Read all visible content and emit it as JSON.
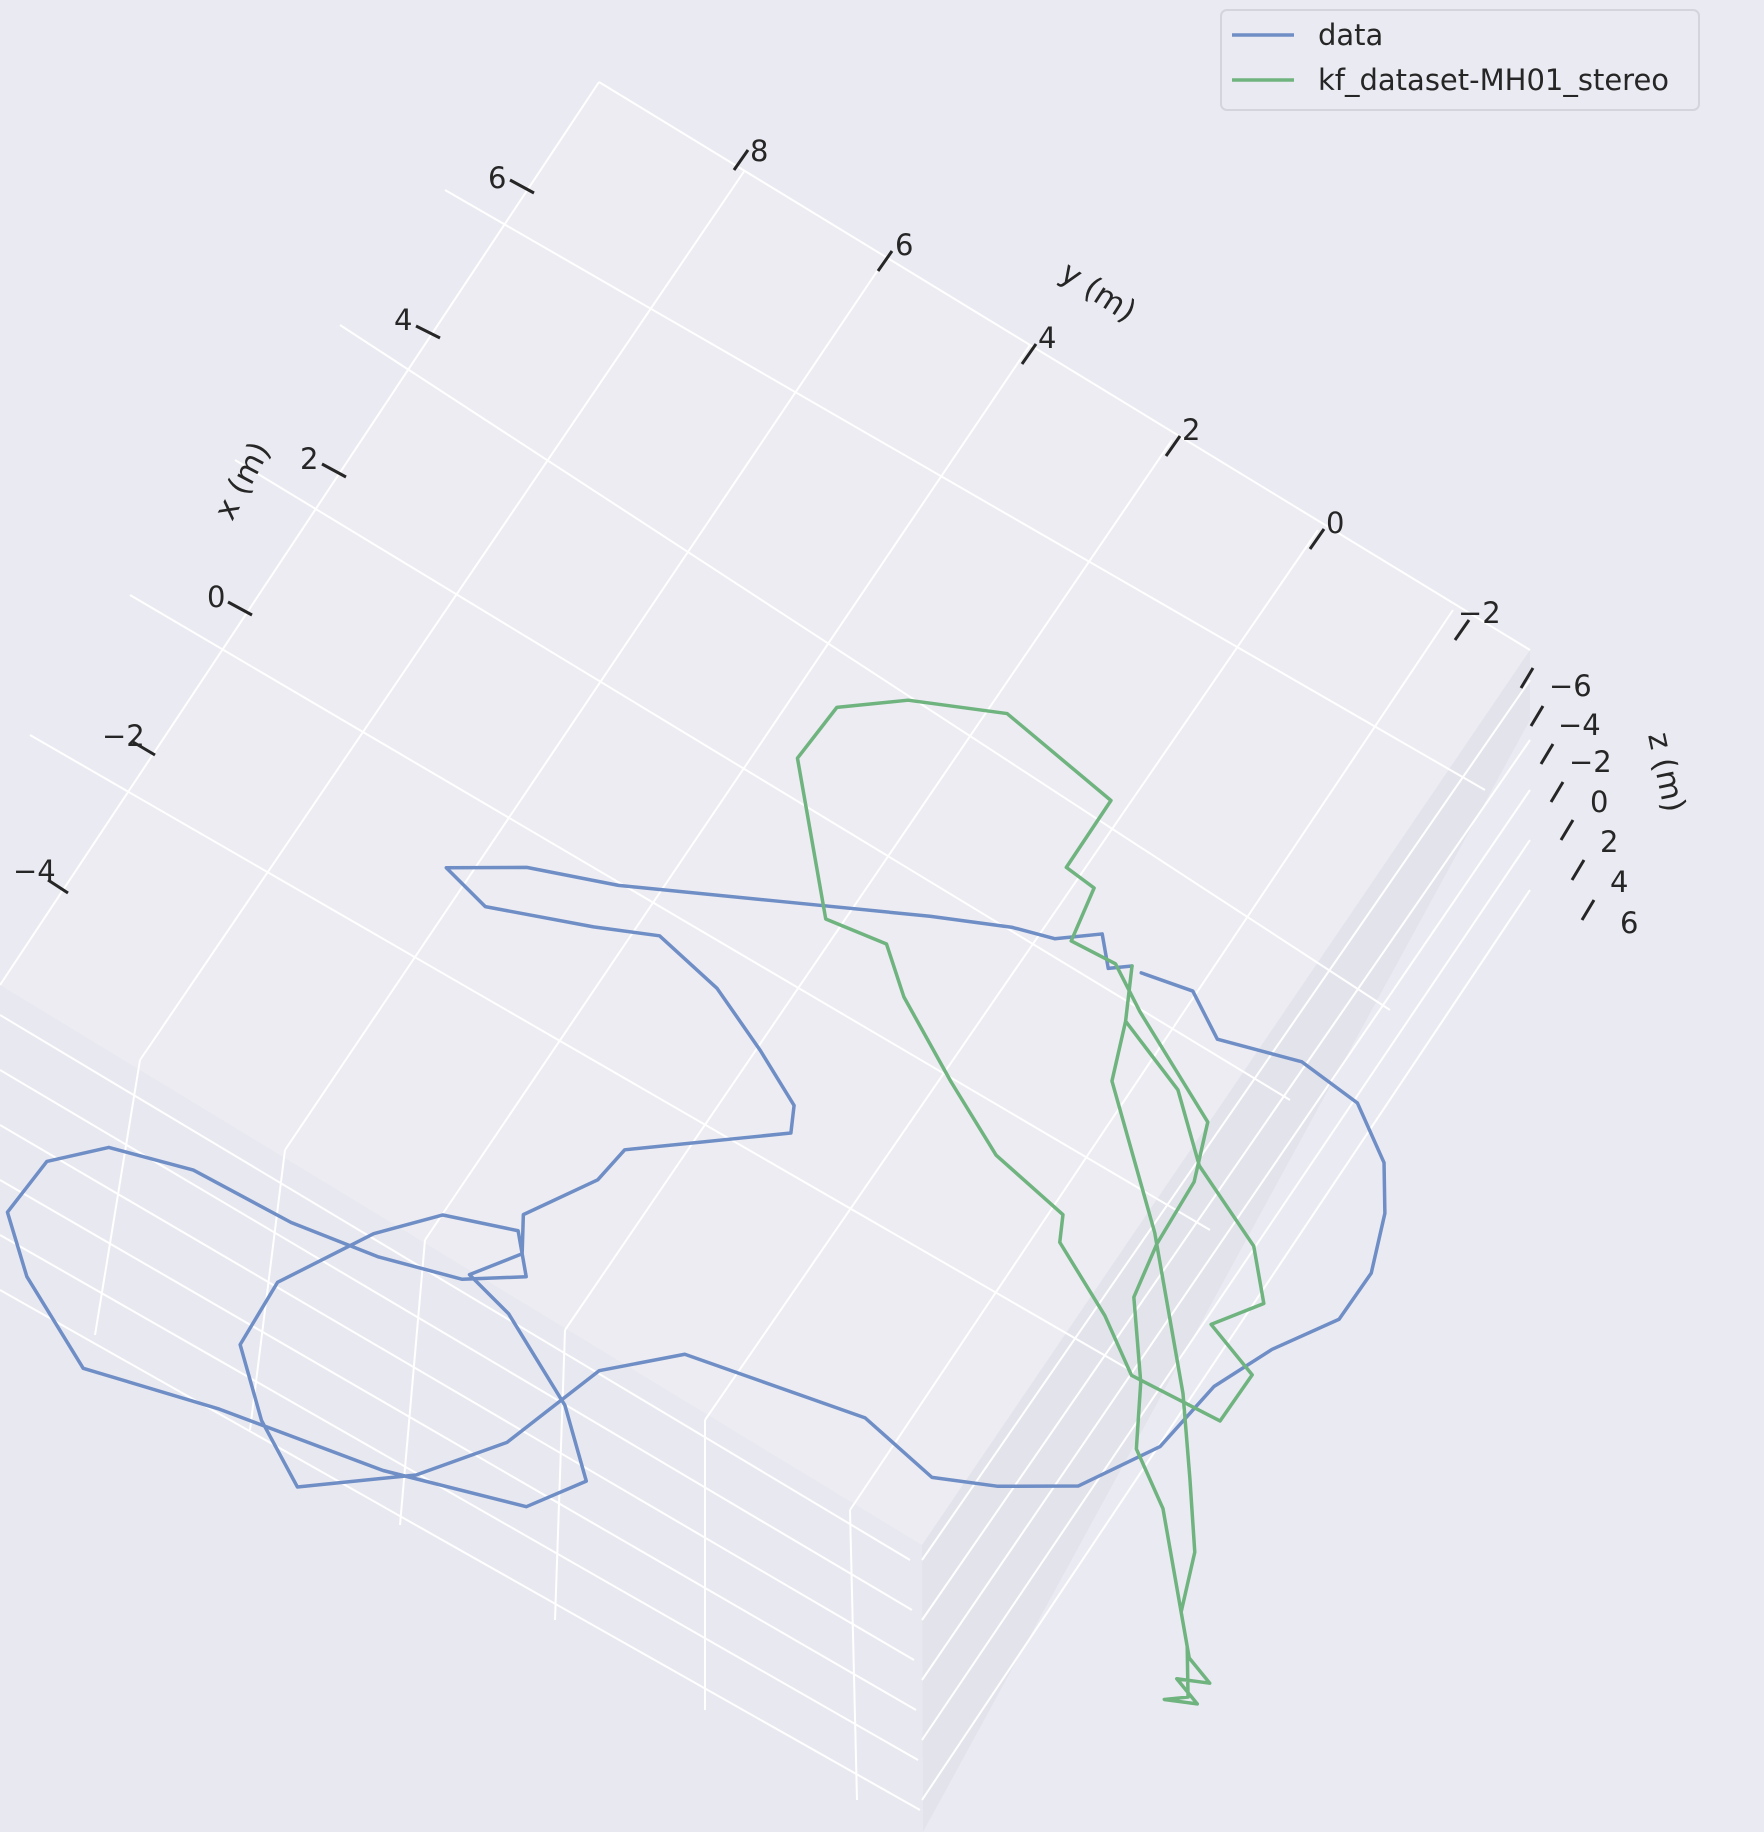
{
  "chart_data": {
    "type": "line3d",
    "xlabel": "x (m)",
    "ylabel": "y (m)",
    "zlabel": "z (m)",
    "x_ticks": [
      "−4",
      "−2",
      "0",
      "2",
      "4",
      "6"
    ],
    "y_ticks": [
      "8",
      "6",
      "4",
      "2",
      "0",
      "−2"
    ],
    "z_ticks": [
      "−6",
      "−4",
      "−2",
      "0",
      "2",
      "4",
      "6"
    ],
    "legend_position": "upper right",
    "series": [
      {
        "name": "data",
        "color": "#6f8ec6",
        "points": [
          [
            0.0,
            0.0,
            0.0
          ],
          [
            0.1,
            0.2,
            0.0
          ],
          [
            0.4,
            -0.1,
            0.0
          ],
          [
            0.6,
            0.3,
            0.0
          ],
          [
            0.9,
            0.5,
            0.0
          ],
          [
            1.4,
            1.0,
            0.0
          ],
          [
            2.3,
            2.0,
            0.0
          ],
          [
            3.2,
            3.0,
            0.0
          ],
          [
            3.8,
            3.5,
            0.0
          ],
          [
            4.2,
            4.1,
            0.0
          ],
          [
            3.7,
            4.2,
            0.0
          ],
          [
            3.0,
            3.6,
            0.0
          ],
          [
            2.6,
            3.2,
            0.0
          ],
          [
            1.9,
            3.3,
            0.0
          ],
          [
            1.2,
            3.6,
            0.0
          ],
          [
            0.6,
            3.9,
            0.0
          ],
          [
            0.4,
            4.2,
            0.0
          ],
          [
            0.6,
            4.6,
            0.0
          ],
          [
            1.1,
            5.6,
            0.0
          ],
          [
            1.0,
            6.1,
            0.0
          ],
          [
            1.1,
            7.0,
            0.0
          ],
          [
            0.8,
            7.4,
            0.0
          ],
          [
            0.9,
            8.0,
            0.0
          ],
          [
            0.4,
            8.1,
            0.0
          ],
          [
            -0.6,
            8.6,
            0.0
          ],
          [
            -1.3,
            9.2,
            0.0
          ],
          [
            -1.2,
            9.9,
            0.0
          ],
          [
            -0.2,
            10.6,
            0.0
          ],
          [
            1.1,
            11.2,
            0.0
          ],
          [
            2.1,
            11.8,
            0.0
          ],
          [
            3.1,
            11.3,
            0.0
          ],
          [
            3.7,
            10.8,
            0.0
          ],
          [
            3.9,
            10.0,
            0.0
          ],
          [
            3.7,
            9.4,
            0.0
          ],
          [
            3.1,
            9.0,
            0.0
          ],
          [
            2.2,
            8.8,
            0.0
          ],
          [
            1.5,
            8.5,
            0.0
          ],
          [
            0.9,
            8.1,
            0.0
          ],
          [
            0.6,
            7.6,
            0.0
          ],
          [
            1.0,
            7.2,
            0.0
          ],
          [
            1.5,
            7.6,
            0.0
          ],
          [
            1.7,
            8.3,
            0.0
          ],
          [
            1.8,
            9.5,
            0.0
          ],
          [
            1.5,
            10.4,
            0.0
          ],
          [
            0.8,
            11.0,
            0.0
          ],
          [
            0.1,
            11.4,
            0.0
          ],
          [
            -0.4,
            10.4,
            0.0
          ],
          [
            -0.6,
            9.4,
            0.0
          ],
          [
            -0.5,
            8.0,
            0.0
          ],
          [
            -0.8,
            7.2,
            0.0
          ],
          [
            -1.4,
            6.9,
            0.0
          ],
          [
            -2.2,
            6.5,
            0.0
          ],
          [
            -3.0,
            6.6,
            0.0
          ],
          [
            -3.4,
            6.2,
            0.0
          ],
          [
            -3.8,
            5.6,
            0.0
          ],
          [
            -3.9,
            4.6,
            0.0
          ],
          [
            -3.7,
            3.6,
            0.0
          ],
          [
            -3.7,
            2.8,
            0.0
          ],
          [
            -3.8,
            2.0,
            0.0
          ],
          [
            -3.6,
            1.3,
            0.0
          ],
          [
            -3.2,
            0.6,
            0.0
          ],
          [
            -2.8,
            0.1,
            0.0
          ],
          [
            -2.2,
            -0.3,
            0.0
          ],
          [
            -1.6,
            -0.3,
            0.0
          ],
          [
            -1.0,
            0.1,
            0.0
          ],
          [
            -0.5,
            -0.2,
            0.0
          ],
          [
            -0.1,
            0.0,
            0.0
          ]
        ]
      },
      {
        "name": "kf_dataset-MH01_stereo",
        "color": "#6fb37f",
        "points": [
          [
            0.0,
            0.0,
            0.0
          ],
          [
            -0.4,
            0.6,
            0.0
          ],
          [
            -1.2,
            0.9,
            0.0
          ],
          [
            -1.9,
            1.5,
            0.0
          ],
          [
            -2.8,
            1.9,
            0.0
          ],
          [
            -3.3,
            2.4,
            0.0
          ],
          [
            -3.2,
            3.0,
            0.0
          ],
          [
            -3.8,
            3.2,
            0.0
          ],
          [
            -4.0,
            3.9,
            0.0
          ],
          [
            -3.2,
            4.1,
            0.0
          ],
          [
            -2.6,
            3.7,
            0.0
          ],
          [
            -1.8,
            3.3,
            0.0
          ],
          [
            -1.6,
            3.0,
            0.0
          ],
          [
            -0.8,
            2.9,
            0.0
          ],
          [
            0.0,
            2.5,
            0.0
          ],
          [
            0.9,
            2.0,
            0.0
          ],
          [
            1.4,
            1.6,
            0.0
          ],
          [
            1.9,
            1.8,
            0.0
          ],
          [
            2.6,
            1.1,
            0.0
          ],
          [
            3.3,
            0.4,
            0.0
          ],
          [
            3.5,
            -0.4,
            0.0
          ],
          [
            3.2,
            -1.0,
            0.0
          ],
          [
            2.6,
            -1.6,
            0.0
          ],
          [
            1.4,
            -1.5,
            0.0
          ],
          [
            1.1,
            -0.5,
            0.0
          ],
          [
            0.8,
            -0.5,
            0.0
          ],
          [
            0.5,
            0.2,
            0.0
          ],
          [
            0.1,
            0.1,
            0.0
          ],
          [
            -0.4,
            0.4,
            0.0
          ],
          [
            -1.0,
            0.7,
            0.0
          ],
          [
            -1.6,
            1.0,
            0.0
          ],
          [
            -2.0,
            1.7,
            0.0
          ],
          [
            -2.3,
            2.6,
            0.0
          ],
          [
            -2.6,
            3.3,
            0.0
          ],
          [
            -3.3,
            4.1,
            0.0
          ],
          [
            -3.8,
            4.8,
            0.0
          ],
          [
            -4.4,
            5.2,
            0.0
          ],
          [
            -5.0,
            5.8,
            0.0
          ],
          [
            -5.6,
            6.4,
            0.0
          ],
          [
            -6.0,
            6.9,
            0.0
          ],
          [
            -5.9,
            7.1,
            0.0
          ],
          [
            -6.1,
            6.9,
            0.0
          ],
          [
            -5.8,
            6.8,
            0.0
          ],
          [
            -6.0,
            6.6,
            0.0
          ],
          [
            -5.7,
            6.5,
            0.0
          ],
          [
            -5.3,
            6.1,
            0.0
          ],
          [
            -4.9,
            5.4,
            0.0
          ],
          [
            -4.3,
            4.7,
            0.0
          ],
          [
            -3.6,
            3.9,
            0.0
          ],
          [
            -3.0,
            3.3,
            0.0
          ],
          [
            -2.2,
            2.5,
            0.0
          ],
          [
            -1.5,
            1.9,
            0.0
          ],
          [
            -0.8,
            1.3,
            0.0
          ],
          [
            -0.4,
            0.6,
            0.0
          ],
          [
            0.0,
            0.0,
            0.0
          ]
        ]
      }
    ]
  }
}
